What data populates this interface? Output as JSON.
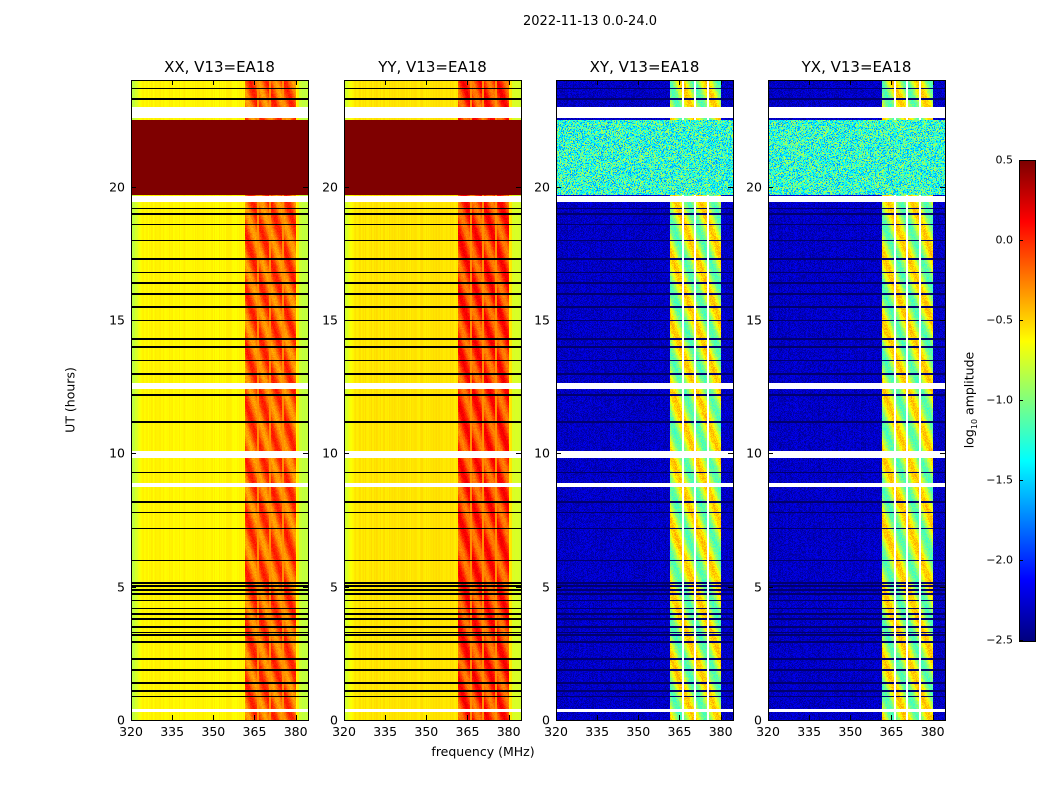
{
  "suptitle": "2022-11-13 0.0-24.0",
  "chart_data": {
    "type": "heatmap",
    "title": "2022-11-13 0.0-24.0",
    "xlabel": "frequency (MHz)",
    "ylabel": "UT (hours)",
    "xlim": [
      320,
      384.5
    ],
    "ylim": [
      0,
      24
    ],
    "xticks": [
      "320",
      "335",
      "350",
      "365",
      "380"
    ],
    "xtick_values": [
      320,
      335,
      350,
      365,
      380
    ],
    "yticks": [
      "0",
      "5",
      "10",
      "15",
      "20"
    ],
    "ytick_values": [
      0,
      5,
      10,
      15,
      20
    ],
    "colormap": "jet",
    "colorbar": {
      "label_main": "log",
      "label_sub": "10",
      "label_rest": " amplitude",
      "range": [
        -2.5,
        0.5
      ],
      "ticks": [
        "0.5",
        "0.0",
        "−0.5",
        "−1.0",
        "−1.5",
        "−2.0",
        "−2.5"
      ],
      "tick_values": [
        0.5,
        0.0,
        -0.5,
        -1.0,
        -1.5,
        -2.0,
        -2.5
      ]
    },
    "rfi_band_mhz": [
      361.5,
      380
    ],
    "saturated_hours": [
      19.7,
      22.5
    ],
    "flagged_hours": [
      [
        0.3,
        0.45
      ],
      [
        8.75,
        8.9
      ],
      [
        9.85,
        10.1
      ],
      [
        12.45,
        12.65
      ],
      [
        19.45,
        19.65
      ],
      [
        22.6,
        23.0
      ]
    ],
    "zero_row_hours": [
      0.9,
      1.1,
      1.4,
      1.9,
      2.3,
      2.95,
      3.2,
      3.3,
      3.5,
      3.8,
      4.0,
      4.2,
      4.5,
      4.75,
      4.9,
      5.05,
      5.15,
      6.0,
      7.2,
      7.8,
      8.2,
      9.3,
      11.2,
      12.2,
      13.0,
      13.5,
      14.0,
      14.3,
      15.0,
      15.5,
      16.0,
      16.4,
      16.8,
      17.3,
      18.0,
      18.6,
      19.0,
      19.2,
      23.3,
      23.7
    ],
    "panels": [
      {
        "title": "XX, V13=EA18",
        "kind": "parallel",
        "baseline": -0.6,
        "band_level": 0.0
      },
      {
        "title": "YY, V13=EA18",
        "kind": "parallel",
        "baseline": -0.55,
        "band_level": 0.1
      },
      {
        "title": "XY, V13=EA18",
        "kind": "cross",
        "baseline": -2.3,
        "band_level": -0.8
      },
      {
        "title": "YX, V13=EA18",
        "kind": "cross",
        "baseline": -2.3,
        "band_level": -0.8
      }
    ]
  }
}
